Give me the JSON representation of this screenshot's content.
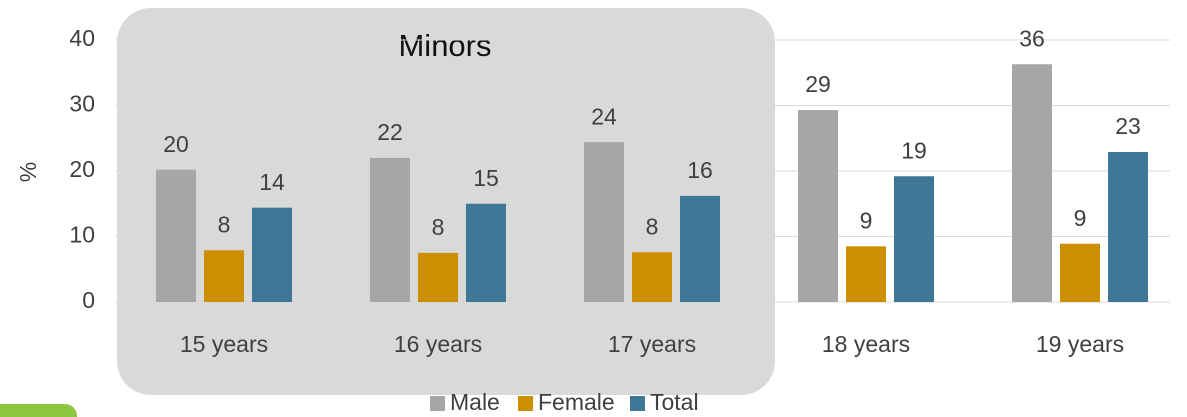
{
  "chart_data": {
    "type": "bar",
    "annotation": "Minors",
    "y_label": "%",
    "categories": [
      "15 years",
      "16 years",
      "17 years",
      "18 years",
      "19 years"
    ],
    "series": [
      {
        "name": "Male",
        "color": "#a6a6a6",
        "values": [
          20.2,
          22.0,
          24.4,
          29.3,
          36.3
        ],
        "value_labels": [
          "20",
          "22",
          "24",
          "29",
          "36"
        ]
      },
      {
        "name": "Female",
        "color": "#cc8f00",
        "values": [
          7.9,
          7.5,
          7.6,
          8.5,
          8.9
        ],
        "value_labels": [
          "8",
          "8",
          "8",
          "9",
          "9"
        ]
      },
      {
        "name": "Total",
        "color": "#3e7896",
        "values": [
          14.4,
          15.0,
          16.2,
          19.2,
          22.9
        ],
        "value_labels": [
          "14",
          "15",
          "16",
          "19",
          "23"
        ]
      }
    ],
    "ylim": [
      0,
      40
    ],
    "yticks": [
      0,
      10,
      20,
      30,
      40
    ],
    "grid": true,
    "legend": "bottom"
  }
}
